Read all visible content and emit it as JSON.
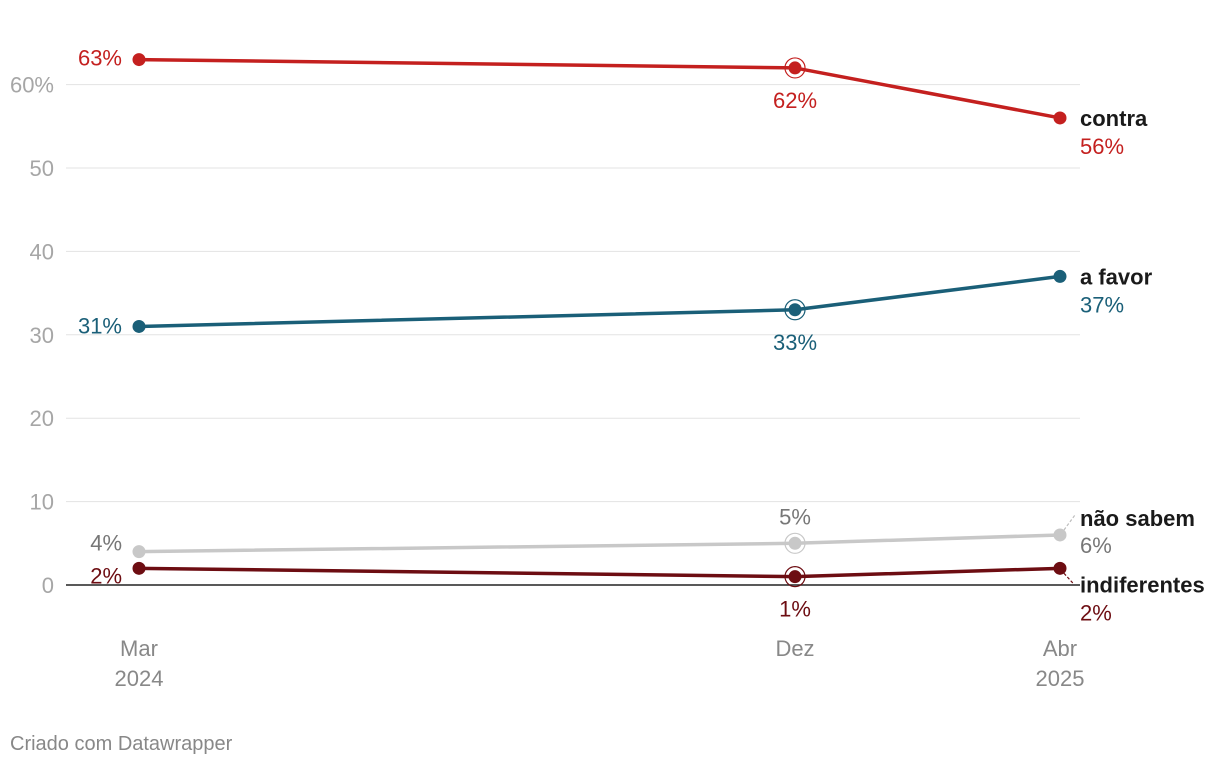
{
  "chart_data": {
    "type": "line",
    "x": [
      "Mar 2024",
      "Dez",
      "Abr 2025"
    ],
    "x_tick_labels": [
      {
        "line1": "Mar",
        "line2": "2024"
      },
      {
        "line1": "Dez",
        "line2": ""
      },
      {
        "line1": "Abr",
        "line2": "2025"
      }
    ],
    "ylim": [
      0,
      60
    ],
    "y_ticks": [
      {
        "value": 0,
        "label": "0"
      },
      {
        "value": 10,
        "label": "10"
      },
      {
        "value": 20,
        "label": "20"
      },
      {
        "value": 30,
        "label": "30"
      },
      {
        "value": 40,
        "label": "40"
      },
      {
        "value": 50,
        "label": "50"
      },
      {
        "value": 60,
        "label": "60%"
      }
    ],
    "grid": true,
    "series": [
      {
        "name": "contra",
        "color": "#c4201f",
        "values": [
          63,
          62,
          56
        ],
        "labels": [
          "63%",
          "62%",
          "56%"
        ]
      },
      {
        "name": "a favor",
        "color": "#1a5f78",
        "values": [
          31,
          33,
          37
        ],
        "labels": [
          "31%",
          "33%",
          "37%"
        ]
      },
      {
        "name": "não sabem",
        "color": "#c8c8c8",
        "label_color": "#777777",
        "values": [
          4,
          5,
          6
        ],
        "labels": [
          "4%",
          "5%",
          "6%"
        ]
      },
      {
        "name": "indiferentes",
        "color": "#6d0d12",
        "values": [
          2,
          1,
          2
        ],
        "labels": [
          "2%",
          "1%",
          "2%"
        ]
      }
    ]
  },
  "credit": "Criado com Datawrapper"
}
